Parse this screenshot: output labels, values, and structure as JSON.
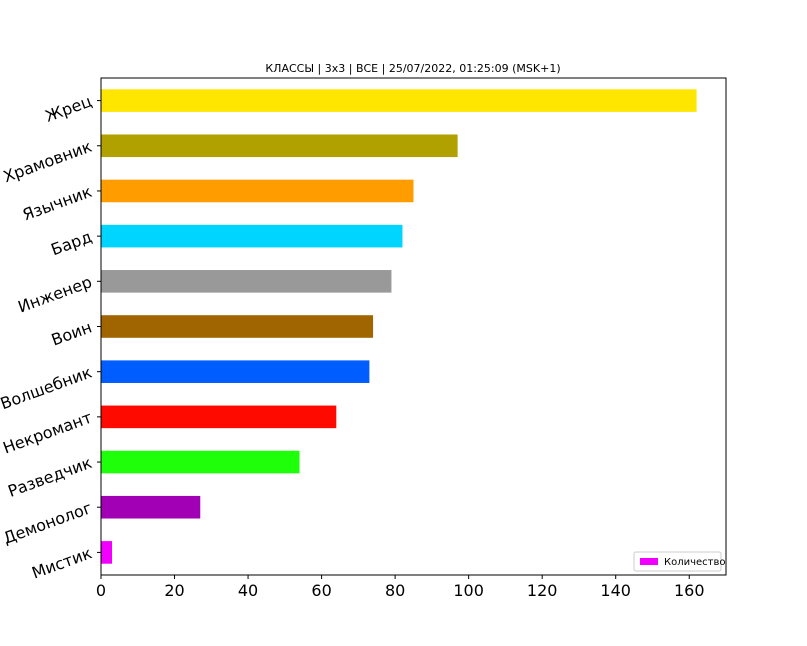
{
  "chart_data": {
    "type": "bar",
    "orientation": "horizontal",
    "title": "КЛАССЫ | 3х3 | ВСЕ | 25/07/2022, 01:25:09 (MSK+1)",
    "categories": [
      "Жрец",
      "Храмовник",
      "Язычник",
      "Бард",
      "Инженер",
      "Воин",
      "Волшебник",
      "Некромант",
      "Разведчик",
      "Демонолог",
      "Мистик"
    ],
    "series": [
      {
        "name": "Количество",
        "values": [
          162,
          97,
          85,
          82,
          79,
          74,
          73,
          64,
          54,
          27,
          3
        ]
      }
    ],
    "colors": [
      "#ffe600",
      "#b0a000",
      "#ff9d00",
      "#00d5ff",
      "#999999",
      "#a06400",
      "#005dff",
      "#ff0a00",
      "#1eff0a",
      "#a100b5",
      "#f200ff"
    ],
    "xticks": [
      "0",
      "20",
      "40",
      "60",
      "80",
      "100",
      "120",
      "140",
      "160"
    ],
    "xlim": [
      0,
      170
    ],
    "xlabel": "",
    "ylabel": "",
    "grid": false,
    "legend_position": "bottom-right"
  }
}
